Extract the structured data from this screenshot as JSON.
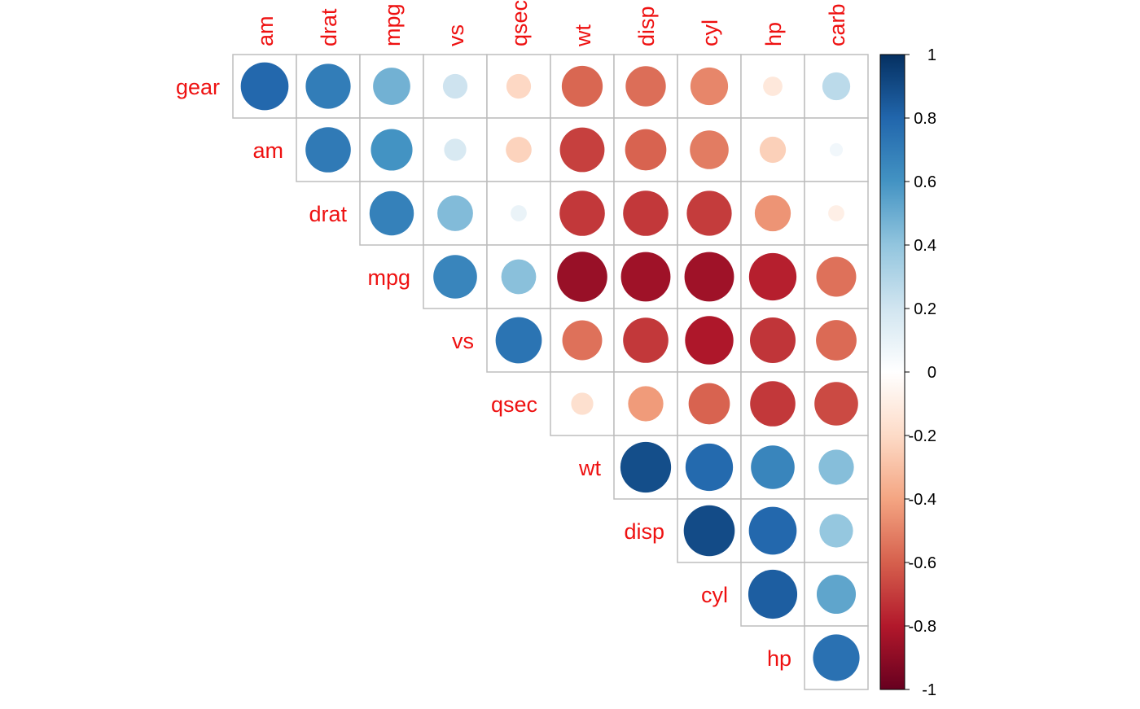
{
  "chart_data": {
    "type": "heatmap",
    "subtype": "correlation-circle-upper-triangle",
    "row_labels": [
      "gear",
      "am",
      "drat",
      "mpg",
      "vs",
      "qsec",
      "wt",
      "disp",
      "cyl",
      "hp"
    ],
    "col_labels": [
      "am",
      "drat",
      "mpg",
      "vs",
      "qsec",
      "wt",
      "disp",
      "cyl",
      "hp",
      "carb"
    ],
    "values": [
      [
        0.79,
        0.7,
        0.48,
        0.21,
        -0.21,
        -0.58,
        -0.56,
        -0.49,
        -0.13,
        0.27
      ],
      [
        null,
        0.71,
        0.6,
        0.17,
        -0.23,
        -0.69,
        -0.59,
        -0.52,
        -0.24,
        0.06
      ],
      [
        null,
        null,
        0.68,
        0.44,
        0.09,
        -0.71,
        -0.71,
        -0.7,
        -0.45,
        -0.09
      ],
      [
        null,
        null,
        null,
        0.66,
        0.42,
        -0.87,
        -0.85,
        -0.85,
        -0.78,
        -0.55
      ],
      [
        null,
        null,
        null,
        null,
        0.74,
        -0.55,
        -0.71,
        -0.81,
        -0.72,
        -0.57
      ],
      [
        null,
        null,
        null,
        null,
        null,
        -0.17,
        -0.43,
        -0.59,
        -0.71,
        -0.66
      ],
      [
        null,
        null,
        null,
        null,
        null,
        null,
        0.89,
        0.78,
        0.66,
        0.43
      ],
      [
        null,
        null,
        null,
        null,
        null,
        null,
        null,
        0.9,
        0.79,
        0.39
      ],
      [
        null,
        null,
        null,
        null,
        null,
        null,
        null,
        null,
        0.83,
        0.53
      ],
      [
        null,
        null,
        null,
        null,
        null,
        null,
        null,
        null,
        null,
        0.75
      ]
    ],
    "colorbar": {
      "range": [
        -1,
        1
      ],
      "tick_labels": [
        "1",
        "0.8",
        "0.6",
        "0.4",
        "0.2",
        "0",
        "-0.2",
        "-0.4",
        "-0.6",
        "-0.8",
        "-1"
      ],
      "tick_values": [
        1,
        0.8,
        0.6,
        0.4,
        0.2,
        0,
        -0.2,
        -0.4,
        -0.6,
        -0.8,
        -1
      ]
    },
    "colors": {
      "label_color": "#ee1111",
      "grid_color": "#bdbdbd",
      "scale": [
        "#67001f",
        "#b2182b",
        "#d6604d",
        "#f4a582",
        "#fddbc7",
        "#ffffff",
        "#d1e5f0",
        "#92c5de",
        "#4393c3",
        "#2166ac",
        "#053061"
      ]
    },
    "title": "",
    "xlabel": "",
    "ylabel": ""
  }
}
